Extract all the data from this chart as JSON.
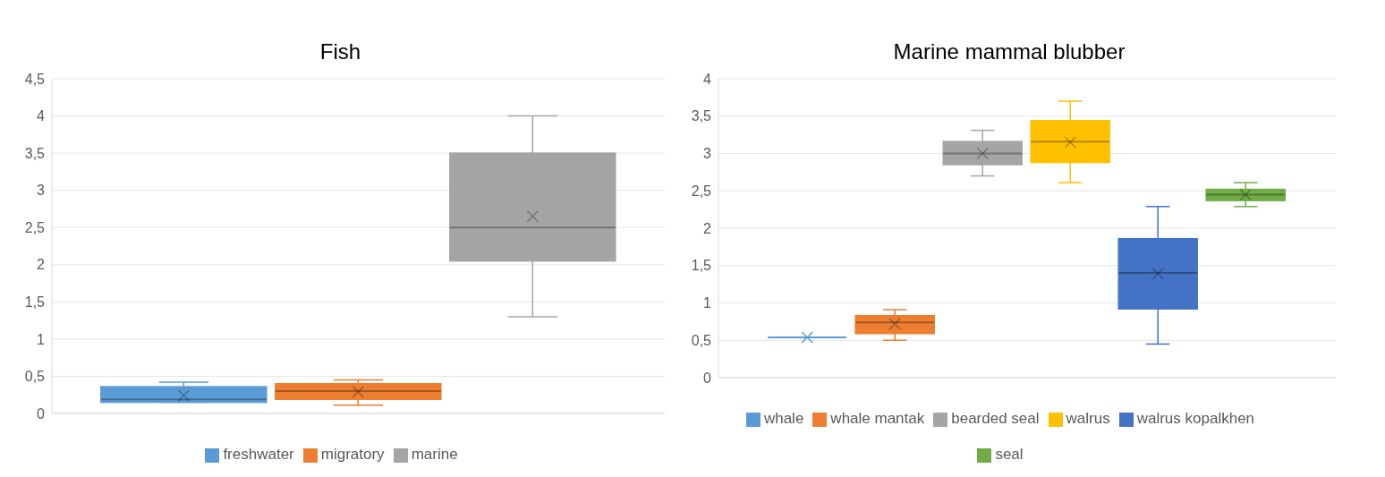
{
  "chart_data": [
    {
      "type": "box",
      "title": "Fish",
      "categories": [
        null
      ],
      "ylim": [
        0,
        4.5
      ],
      "yticks": [
        0,
        {
          "value": 0.5,
          "label": "0,5"
        },
        1,
        {
          "value": 1.5,
          "label": "1,5"
        },
        2,
        {
          "value": 2.5,
          "label": "2,5"
        },
        3,
        {
          "value": 3.5,
          "label": "3,5"
        },
        4,
        {
          "value": 4.5,
          "label": "4,5"
        }
      ],
      "grid": "y",
      "legend": "bottom",
      "tick_labels": "y",
      "marker": "cross",
      "series": [
        {
          "name": "freshwater",
          "color": "#5b9bd5",
          "boxes": [
            {
              "low": 0.15,
              "q1": 0.15,
              "median": 0.19,
              "q3": 0.36,
              "high": 0.42,
              "mean": 0.24
            }
          ]
        },
        {
          "name": "migratory",
          "color": "#ed7d31",
          "boxes": [
            {
              "low": 0.11,
              "q1": 0.19,
              "median": 0.3,
              "q3": 0.4,
              "high": 0.45,
              "mean": 0.29
            }
          ]
        },
        {
          "name": "marine",
          "color": "#a5a5a5",
          "boxes": [
            {
              "low": 1.3,
              "q1": 2.05,
              "median": 2.5,
              "q3": 3.5,
              "high": 4.0,
              "mean": 2.65
            }
          ]
        }
      ]
    },
    {
      "type": "box",
      "title": "Marine mammal blubber",
      "categories": [
        null
      ],
      "ylim": [
        0,
        4
      ],
      "yticks": [
        0,
        {
          "value": 0.5,
          "label": "0,5"
        },
        1,
        {
          "value": 1.5,
          "label": "1,5"
        },
        2,
        {
          "value": 2.5,
          "label": "2,5"
        },
        3,
        {
          "value": 3.5,
          "label": "3,5"
        },
        4
      ],
      "grid": "y",
      "legend": "bottom",
      "tick_labels": "y",
      "marker": "cross",
      "series": [
        {
          "name": "whale",
          "color": "#5b9bd5",
          "boxes": [
            {
              "low": 0.54,
              "q1": 0.54,
              "median": 0.54,
              "q3": 0.54,
              "high": 0.54,
              "mean": 0.54
            }
          ]
        },
        {
          "name": "whale mantak",
          "color": "#ed7d31",
          "boxes": [
            {
              "low": 0.5,
              "q1": 0.59,
              "median": 0.74,
              "q3": 0.83,
              "high": 0.91,
              "mean": 0.72
            }
          ]
        },
        {
          "name": "bearded seal",
          "color": "#a5a5a5",
          "boxes": [
            {
              "low": 2.7,
              "q1": 2.85,
              "median": 3.0,
              "q3": 3.16,
              "high": 3.31,
              "mean": 3.0
            }
          ]
        },
        {
          "name": "walrus",
          "color": "#ffc000",
          "boxes": [
            {
              "low": 2.61,
              "q1": 2.88,
              "median": 3.16,
              "q3": 3.44,
              "high": 3.7,
              "mean": 3.15
            }
          ]
        },
        {
          "name": "walrus kopalkhen",
          "color": "#4472c4",
          "boxes": [
            {
              "low": 0.45,
              "q1": 0.92,
              "median": 1.4,
              "q3": 1.86,
              "high": 2.29,
              "mean": 1.39
            }
          ]
        },
        {
          "name": "seal",
          "color": "#70ad47",
          "boxes": [
            {
              "low": 2.29,
              "q1": 2.37,
              "median": 2.45,
              "q3": 2.52,
              "high": 2.61,
              "mean": 2.45
            }
          ]
        }
      ]
    }
  ]
}
